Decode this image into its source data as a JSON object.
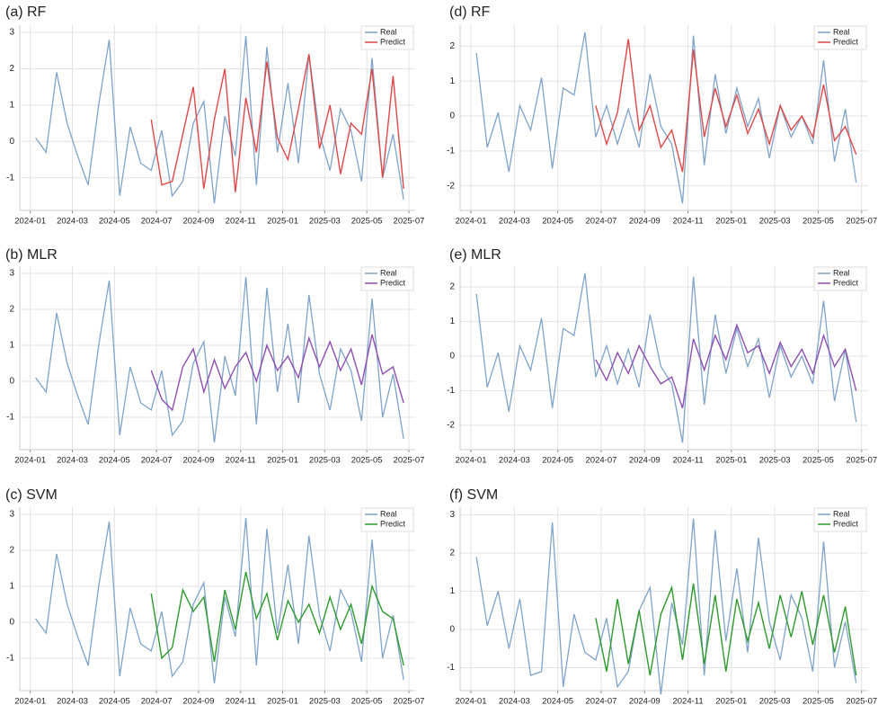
{
  "chart_data": [
    {
      "type": "line",
      "title": "(a) RF",
      "x": [
        "2024-01",
        "2024-01",
        "2024-02",
        "2024-02",
        "2024-03",
        "2024-03",
        "2024-04",
        "2024-04",
        "2024-05",
        "2024-05",
        "2024-06",
        "2024-06",
        "2024-07",
        "2024-07",
        "2024-08",
        "2024-08",
        "2024-09",
        "2024-09",
        "2024-10",
        "2024-10",
        "2024-11",
        "2024-11",
        "2024-12",
        "2024-12",
        "2025-01",
        "2025-01",
        "2025-02",
        "2025-02",
        "2025-03",
        "2025-03",
        "2025-04",
        "2025-04",
        "2025-05",
        "2025-05",
        "2025-06",
        "2025-06"
      ],
      "series": [
        {
          "name": "Real",
          "color": "#7fa3c9",
          "values": [
            0.1,
            -0.3,
            1.9,
            0.5,
            -0.4,
            -1.2,
            1.0,
            2.8,
            -1.5,
            0.4,
            -0.6,
            -0.8,
            0.3,
            -1.5,
            -1.1,
            0.5,
            1.1,
            -1.7,
            0.7,
            -0.4,
            2.9,
            -1.2,
            2.6,
            -0.3,
            1.6,
            -0.6,
            2.4,
            0.2,
            -0.8,
            0.9,
            0.3,
            -1.1,
            2.3,
            -1.0,
            0.2,
            -1.6
          ]
        },
        {
          "name": "Predict",
          "color": "#e04848",
          "values": [
            null,
            null,
            null,
            null,
            null,
            null,
            null,
            null,
            null,
            null,
            null,
            0.6,
            -1.2,
            -1.1,
            0.2,
            1.5,
            -1.3,
            0.6,
            2.0,
            -1.4,
            1.2,
            -0.3,
            2.2,
            0.1,
            -0.5,
            0.9,
            2.4,
            -0.2,
            1.0,
            -0.9,
            0.5,
            0.2,
            2.0,
            -1.0,
            1.8,
            -1.3
          ]
        }
      ],
      "xticks": [
        "2024-01",
        "2024-03",
        "2024-05",
        "2024-07",
        "2024-09",
        "2024-11",
        "2025-01",
        "2025-03",
        "2025-05",
        "2025-07"
      ],
      "ylim": [
        -1.9,
        3.2
      ],
      "yticks": [
        -1,
        0,
        1,
        2,
        3
      ],
      "grid": true,
      "legend": "upper right"
    },
    {
      "type": "line",
      "title": "(b) MLR",
      "x": [
        "2024-01",
        "2024-01",
        "2024-02",
        "2024-02",
        "2024-03",
        "2024-03",
        "2024-04",
        "2024-04",
        "2024-05",
        "2024-05",
        "2024-06",
        "2024-06",
        "2024-07",
        "2024-07",
        "2024-08",
        "2024-08",
        "2024-09",
        "2024-09",
        "2024-10",
        "2024-10",
        "2024-11",
        "2024-11",
        "2024-12",
        "2024-12",
        "2025-01",
        "2025-01",
        "2025-02",
        "2025-02",
        "2025-03",
        "2025-03",
        "2025-04",
        "2025-04",
        "2025-05",
        "2025-05",
        "2025-06",
        "2025-06"
      ],
      "series": [
        {
          "name": "Real",
          "color": "#7fa3c9",
          "values": [
            0.1,
            -0.3,
            1.9,
            0.5,
            -0.4,
            -1.2,
            1.0,
            2.8,
            -1.5,
            0.4,
            -0.6,
            -0.8,
            0.3,
            -1.5,
            -1.1,
            0.5,
            1.1,
            -1.7,
            0.7,
            -0.4,
            2.9,
            -1.2,
            2.6,
            -0.3,
            1.6,
            -0.6,
            2.4,
            0.2,
            -0.8,
            0.9,
            0.3,
            -1.1,
            2.3,
            -1.0,
            0.2,
            -1.6
          ]
        },
        {
          "name": "Predict",
          "color": "#8e4fb0",
          "values": [
            null,
            null,
            null,
            null,
            null,
            null,
            null,
            null,
            null,
            null,
            null,
            0.3,
            -0.5,
            -0.8,
            0.4,
            0.9,
            -0.3,
            0.6,
            -0.2,
            0.4,
            0.8,
            0.0,
            1.0,
            0.3,
            0.7,
            0.1,
            1.2,
            0.4,
            1.1,
            0.3,
            0.9,
            -0.1,
            1.3,
            0.2,
            0.4,
            -0.6
          ]
        }
      ],
      "xticks": [
        "2024-01",
        "2024-03",
        "2024-05",
        "2024-07",
        "2024-09",
        "2024-11",
        "2025-01",
        "2025-03",
        "2025-05",
        "2025-07"
      ],
      "ylim": [
        -1.9,
        3.2
      ],
      "yticks": [
        -1,
        0,
        1,
        2,
        3
      ],
      "grid": true,
      "legend": "upper right"
    },
    {
      "type": "line",
      "title": "(c) SVM",
      "x": [
        "2024-01",
        "2024-01",
        "2024-02",
        "2024-02",
        "2024-03",
        "2024-03",
        "2024-04",
        "2024-04",
        "2024-05",
        "2024-05",
        "2024-06",
        "2024-06",
        "2024-07",
        "2024-07",
        "2024-08",
        "2024-08",
        "2024-09",
        "2024-09",
        "2024-10",
        "2024-10",
        "2024-11",
        "2024-11",
        "2024-12",
        "2024-12",
        "2025-01",
        "2025-01",
        "2025-02",
        "2025-02",
        "2025-03",
        "2025-03",
        "2025-04",
        "2025-04",
        "2025-05",
        "2025-05",
        "2025-06",
        "2025-06"
      ],
      "series": [
        {
          "name": "Real",
          "color": "#7fa3c9",
          "values": [
            0.1,
            -0.3,
            1.9,
            0.5,
            -0.4,
            -1.2,
            1.0,
            2.8,
            -1.5,
            0.4,
            -0.6,
            -0.8,
            0.3,
            -1.5,
            -1.1,
            0.5,
            1.1,
            -1.7,
            0.7,
            -0.4,
            2.9,
            -1.2,
            2.6,
            -0.3,
            1.6,
            -0.6,
            2.4,
            0.2,
            -0.8,
            0.9,
            0.3,
            -1.1,
            2.3,
            -1.0,
            0.2,
            -1.6
          ]
        },
        {
          "name": "Predict",
          "color": "#2e9a2e",
          "values": [
            null,
            null,
            null,
            null,
            null,
            null,
            null,
            null,
            null,
            null,
            null,
            0.8,
            -1.0,
            -0.7,
            0.9,
            0.3,
            0.7,
            -1.1,
            0.9,
            -0.2,
            1.4,
            0.1,
            0.8,
            -0.5,
            0.6,
            0.0,
            0.5,
            -0.3,
            0.7,
            -0.2,
            0.5,
            -0.6,
            1.0,
            0.3,
            0.1,
            -1.2
          ]
        }
      ],
      "xticks": [
        "2024-01",
        "2024-03",
        "2024-05",
        "2024-07",
        "2024-09",
        "2024-11",
        "2025-01",
        "2025-03",
        "2025-05",
        "2025-07"
      ],
      "ylim": [
        -1.9,
        3.2
      ],
      "yticks": [
        -1,
        0,
        1,
        2,
        3
      ],
      "grid": true,
      "legend": "upper right"
    },
    {
      "type": "line",
      "title": "(d) RF",
      "x": [
        "2024-01",
        "2024-01",
        "2024-02",
        "2024-02",
        "2024-03",
        "2024-03",
        "2024-04",
        "2024-04",
        "2024-05",
        "2024-05",
        "2024-06",
        "2024-06",
        "2024-07",
        "2024-07",
        "2024-08",
        "2024-08",
        "2024-09",
        "2024-09",
        "2024-10",
        "2024-10",
        "2024-11",
        "2024-11",
        "2024-12",
        "2024-12",
        "2025-01",
        "2025-01",
        "2025-02",
        "2025-02",
        "2025-03",
        "2025-03",
        "2025-04",
        "2025-04",
        "2025-05",
        "2025-05",
        "2025-06",
        "2025-06"
      ],
      "series": [
        {
          "name": "Real",
          "color": "#7fa3c9",
          "values": [
            1.8,
            -0.9,
            0.1,
            -1.6,
            0.3,
            -0.4,
            1.1,
            -1.5,
            0.8,
            0.6,
            2.4,
            -0.6,
            0.3,
            -0.8,
            0.2,
            -0.9,
            1.2,
            -0.3,
            -0.8,
            -2.5,
            2.3,
            -1.4,
            1.2,
            -0.5,
            0.8,
            -0.3,
            0.5,
            -1.2,
            0.3,
            -0.6,
            0.0,
            -0.8,
            1.6,
            -1.3,
            0.2,
            -1.9
          ]
        },
        {
          "name": "Predict",
          "color": "#e04848",
          "values": [
            null,
            null,
            null,
            null,
            null,
            null,
            null,
            null,
            null,
            null,
            null,
            0.3,
            -0.8,
            0.1,
            2.2,
            -0.4,
            0.3,
            -0.9,
            -0.4,
            -1.6,
            1.9,
            -0.6,
            0.8,
            -0.3,
            0.6,
            -0.5,
            0.2,
            -0.8,
            0.3,
            -0.4,
            0.0,
            -0.6,
            0.9,
            -0.7,
            -0.3,
            -1.1
          ]
        }
      ],
      "xticks": [
        "2024-01",
        "2024-03",
        "2024-05",
        "2024-07",
        "2024-09",
        "2024-11",
        "2025-01",
        "2025-03",
        "2025-05",
        "2025-07"
      ],
      "ylim": [
        -2.7,
        2.6
      ],
      "yticks": [
        -2,
        -1,
        0,
        1,
        2
      ],
      "grid": true,
      "legend": "upper right"
    },
    {
      "type": "line",
      "title": "(e) MLR",
      "x": [
        "2024-01",
        "2024-01",
        "2024-02",
        "2024-02",
        "2024-03",
        "2024-03",
        "2024-04",
        "2024-04",
        "2024-05",
        "2024-05",
        "2024-06",
        "2024-06",
        "2024-07",
        "2024-07",
        "2024-08",
        "2024-08",
        "2024-09",
        "2024-09",
        "2024-10",
        "2024-10",
        "2024-11",
        "2024-11",
        "2024-12",
        "2024-12",
        "2025-01",
        "2025-01",
        "2025-02",
        "2025-02",
        "2025-03",
        "2025-03",
        "2025-04",
        "2025-04",
        "2025-05",
        "2025-05",
        "2025-06",
        "2025-06"
      ],
      "series": [
        {
          "name": "Real",
          "color": "#7fa3c9",
          "values": [
            1.8,
            -0.9,
            0.1,
            -1.6,
            0.3,
            -0.4,
            1.1,
            -1.5,
            0.8,
            0.6,
            2.4,
            -0.6,
            0.3,
            -0.8,
            0.2,
            -0.9,
            1.2,
            -0.3,
            -0.8,
            -2.5,
            2.3,
            -1.4,
            1.2,
            -0.5,
            0.8,
            -0.3,
            0.5,
            -1.2,
            0.3,
            -0.6,
            0.0,
            -0.8,
            1.6,
            -1.3,
            0.2,
            -1.9
          ]
        },
        {
          "name": "Predict",
          "color": "#8e4fb0",
          "values": [
            null,
            null,
            null,
            null,
            null,
            null,
            null,
            null,
            null,
            null,
            null,
            -0.1,
            -0.7,
            0.1,
            -0.5,
            0.3,
            -0.3,
            -0.8,
            -0.6,
            -1.5,
            0.5,
            -0.4,
            0.6,
            -0.1,
            0.9,
            0.1,
            0.3,
            -0.5,
            0.4,
            -0.3,
            0.2,
            -0.5,
            0.6,
            -0.3,
            0.2,
            -1.0
          ]
        }
      ],
      "xticks": [
        "2024-01",
        "2024-03",
        "2024-05",
        "2024-07",
        "2024-09",
        "2024-11",
        "2025-01",
        "2025-03",
        "2025-05",
        "2025-07"
      ],
      "ylim": [
        -2.7,
        2.6
      ],
      "yticks": [
        -2,
        -1,
        0,
        1,
        2
      ],
      "grid": true,
      "legend": "upper right"
    },
    {
      "type": "line",
      "title": "(f) SVM",
      "x": [
        "2024-01",
        "2024-01",
        "2024-02",
        "2024-02",
        "2024-03",
        "2024-03",
        "2024-04",
        "2024-04",
        "2024-05",
        "2024-05",
        "2024-06",
        "2024-06",
        "2024-07",
        "2024-07",
        "2024-08",
        "2024-08",
        "2024-09",
        "2024-09",
        "2024-10",
        "2024-10",
        "2024-11",
        "2024-11",
        "2024-12",
        "2024-12",
        "2025-01",
        "2025-01",
        "2025-02",
        "2025-02",
        "2025-03",
        "2025-03",
        "2025-04",
        "2025-04",
        "2025-05",
        "2025-05",
        "2025-06",
        "2025-06"
      ],
      "series": [
        {
          "name": "Real",
          "color": "#7fa3c9",
          "values": [
            1.9,
            0.1,
            1.0,
            -0.5,
            0.8,
            -1.2,
            -1.1,
            2.8,
            -1.5,
            0.4,
            -0.6,
            -0.8,
            0.3,
            -1.5,
            -1.1,
            0.5,
            1.1,
            -1.7,
            0.7,
            -0.4,
            2.9,
            -1.2,
            2.6,
            -0.3,
            1.6,
            -0.6,
            2.4,
            0.2,
            -0.8,
            0.9,
            0.3,
            -1.1,
            2.3,
            -1.0,
            0.2,
            -1.4
          ]
        },
        {
          "name": "Predict",
          "color": "#2e9a2e",
          "values": [
            null,
            null,
            null,
            null,
            null,
            null,
            null,
            null,
            null,
            null,
            null,
            0.3,
            -1.1,
            0.8,
            -0.9,
            0.5,
            -1.2,
            0.4,
            1.1,
            -0.8,
            1.2,
            -0.9,
            0.9,
            -1.1,
            0.8,
            -0.3,
            0.7,
            -0.5,
            0.9,
            -0.2,
            1.0,
            -0.4,
            0.9,
            -0.6,
            0.6,
            -1.2
          ]
        }
      ],
      "xticks": [
        "2024-01",
        "2024-03",
        "2024-05",
        "2024-07",
        "2024-09",
        "2024-11",
        "2025-01",
        "2025-03",
        "2025-05",
        "2025-07"
      ],
      "ylim": [
        -1.6,
        3.2
      ],
      "yticks": [
        -1,
        0,
        1,
        2,
        3
      ],
      "grid": true,
      "legend": "upper right"
    }
  ]
}
